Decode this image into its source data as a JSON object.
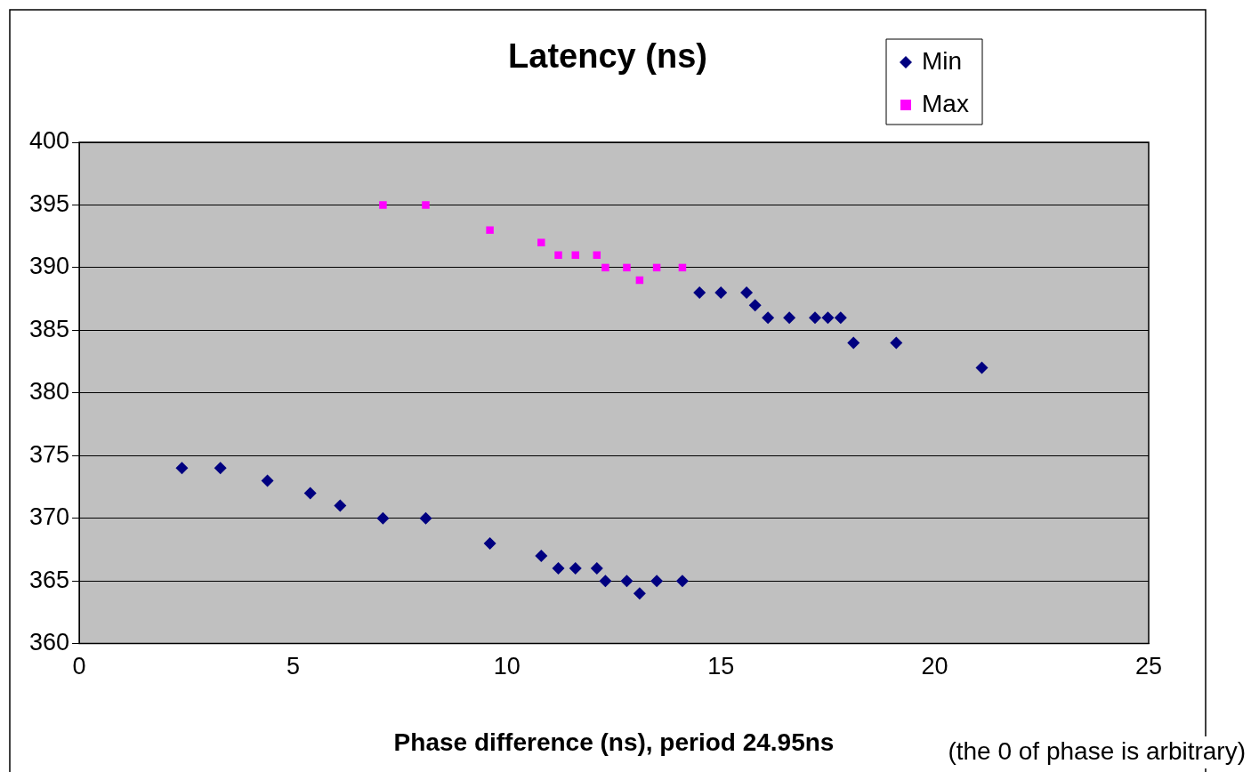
{
  "chart_data": {
    "type": "scatter",
    "title": "Latency (ns)",
    "xlabel": "Phase difference (ns), period 24.95ns",
    "annotations": [
      "(the 0 of phase is arbitrary)"
    ],
    "series": [
      {
        "name": "Min",
        "color": "#000080",
        "marker": "diamond",
        "x": [
          2.4,
          3.3,
          4.4,
          5.4,
          6.1,
          7.1,
          8.1,
          9.6,
          10.8,
          11.2,
          11.6,
          12.1,
          12.3,
          12.8,
          13.1,
          13.5,
          14.1,
          14.5,
          15.0,
          15.6,
          15.8,
          16.1,
          16.6,
          17.2,
          17.5,
          17.8,
          18.1,
          19.1,
          21.1
        ],
        "values": [
          374,
          374,
          373,
          372,
          371,
          370,
          370,
          368,
          367,
          366,
          366,
          366,
          365,
          365,
          364,
          365,
          365,
          388,
          388,
          388,
          387,
          386,
          386,
          386,
          386,
          386,
          384,
          384,
          382
        ]
      },
      {
        "name": "Max",
        "color": "#ff00ff",
        "marker": "square",
        "x": [
          7.1,
          8.1,
          9.6,
          10.8,
          11.2,
          11.6,
          12.1,
          12.3,
          12.8,
          13.1,
          13.5,
          14.1
        ],
        "values": [
          395,
          395,
          393,
          392,
          391,
          391,
          391,
          390,
          390,
          389,
          390,
          390
        ]
      }
    ],
    "xlim": [
      0,
      25
    ],
    "xticks": [
      0,
      5,
      10,
      15,
      20,
      25
    ],
    "ylim": [
      360,
      400
    ],
    "yticks": [
      360,
      365,
      370,
      375,
      380,
      385,
      390,
      395,
      400
    ],
    "grid": "y",
    "legend": "top right"
  }
}
